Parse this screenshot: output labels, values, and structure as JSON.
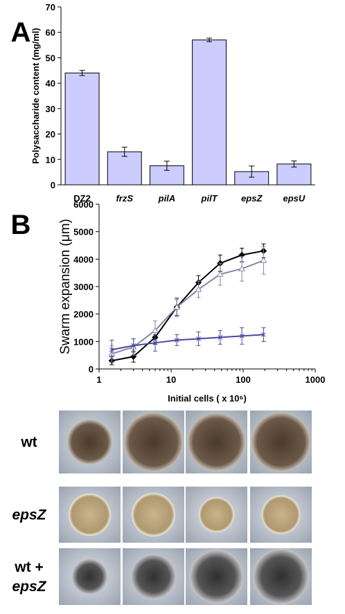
{
  "chart_data": [
    {
      "type": "bar",
      "panel": "A",
      "ylabel": "Polysaccharide content (mg/ml)",
      "categories": [
        "DZ2",
        "frzS",
        "pilA",
        "pilT",
        "epsZ",
        "epsU"
      ],
      "italic_categories": [
        false,
        true,
        true,
        true,
        true,
        true
      ],
      "values": [
        44,
        13,
        7.5,
        57,
        5.2,
        8.2
      ],
      "errors": [
        1,
        1.8,
        1.8,
        0.7,
        2.2,
        1.2
      ],
      "color": "#ccccff",
      "ylim": [
        0,
        70
      ],
      "yticks": [
        0,
        10,
        20,
        30,
        40,
        50,
        60,
        70
      ]
    },
    {
      "type": "line",
      "panel": "B",
      "ylabel": "Swarm expansion (μm)",
      "xlabel": "Initial cells ( x 10⁶)",
      "xscale": "log",
      "x": [
        1.5,
        3,
        6,
        12,
        24,
        48,
        96,
        192
      ],
      "series": [
        {
          "color": "#000000",
          "marker": "diamond",
          "values": [
            300,
            450,
            1150,
            2250,
            3150,
            3850,
            4150,
            4300
          ],
          "errors": [
            150,
            200,
            250,
            300,
            250,
            300,
            250,
            250
          ]
        },
        {
          "color": "#8a84a8",
          "marker": "triangle",
          "values": [
            550,
            800,
            1400,
            2250,
            2900,
            3450,
            3650,
            3950
          ],
          "errors": [
            300,
            300,
            350,
            350,
            300,
            400,
            450,
            500
          ]
        },
        {
          "color": "#4848a0",
          "marker": "cross",
          "values": [
            700,
            850,
            950,
            1050,
            1100,
            1150,
            1200,
            1250
          ],
          "errors": [
            350,
            250,
            300,
            200,
            250,
            250,
            300,
            250
          ]
        }
      ],
      "xlim": [
        1,
        1000
      ],
      "xticks": [
        1,
        10,
        100,
        1000
      ],
      "ylim": [
        0,
        6000
      ],
      "yticks": [
        0,
        1000,
        2000,
        3000,
        4000,
        5000,
        6000
      ]
    }
  ],
  "photo_grid": {
    "rows": [
      [
        "wt"
      ],
      [
        "epsZ"
      ],
      [
        "wt +",
        "epsZ"
      ]
    ],
    "italic_rows": [
      [
        false
      ],
      [
        true
      ],
      [
        false,
        true
      ]
    ]
  }
}
